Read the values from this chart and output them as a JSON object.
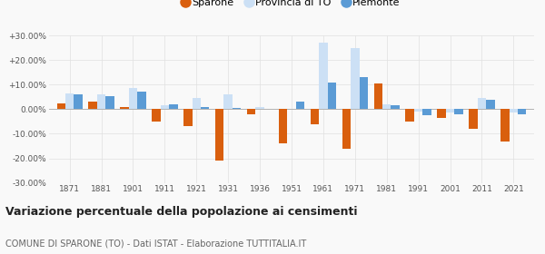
{
  "years": [
    1871,
    1881,
    1901,
    1911,
    1921,
    1931,
    1936,
    1951,
    1961,
    1971,
    1981,
    1991,
    2001,
    2011,
    2021
  ],
  "sparone": [
    2.5,
    3.0,
    1.0,
    -5.0,
    -7.0,
    -21.0,
    -2.0,
    -14.0,
    -6.0,
    -16.0,
    10.5,
    -5.0,
    -3.5,
    -8.0,
    -13.0
  ],
  "provincia_to": [
    6.5,
    6.0,
    8.5,
    1.5,
    4.5,
    6.0,
    1.0,
    0.0,
    27.0,
    25.0,
    2.0,
    -1.0,
    -1.5,
    4.5,
    -1.5
  ],
  "piemonte": [
    6.0,
    5.5,
    7.0,
    2.0,
    1.0,
    0.5,
    0.0,
    3.0,
    11.0,
    13.0,
    1.5,
    -2.5,
    -2.0,
    4.0,
    -2.0
  ],
  "color_sparone": "#d95f0e",
  "color_provincia": "#cce0f5",
  "color_piemonte": "#5b9bd5",
  "title": "Variazione percentuale della popolazione ai censimenti",
  "subtitle": "COMUNE DI SPARONE (TO) - Dati ISTAT - Elaborazione TUTTITALIA.IT",
  "ylim": [
    -30,
    30
  ],
  "yticks": [
    -30,
    -20,
    -10,
    0,
    10,
    20,
    30
  ],
  "ytick_labels": [
    "-30.00%",
    "-20.00%",
    "-10.00%",
    "0.00%",
    "+10.00%",
    "+20.00%",
    "+30.00%"
  ],
  "legend_labels": [
    "Sparone",
    "Provincia di TO",
    "Piemonte"
  ],
  "bg_color": "#f9f9f9",
  "grid_color": "#e0e0e0",
  "title_fontsize": 9,
  "subtitle_fontsize": 7,
  "tick_fontsize": 6.5
}
